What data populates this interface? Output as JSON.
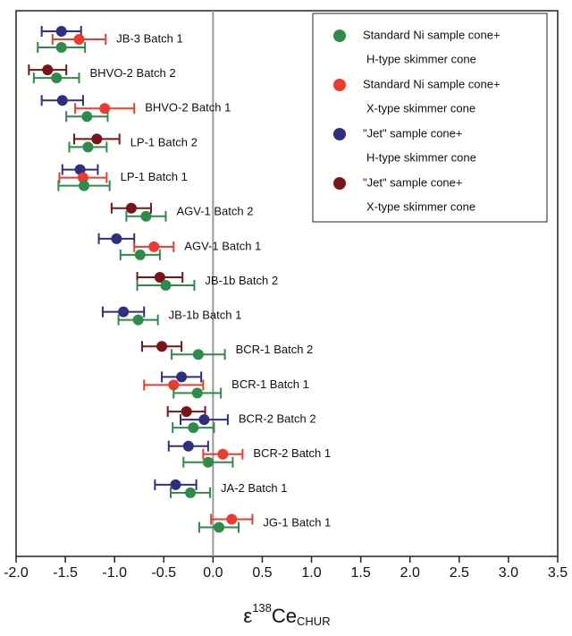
{
  "chart_data": {
    "type": "errorbar-dot",
    "categories": [
      "JB-3 Batch 1",
      "BHVO-2 Batch 2",
      "BHVO-2  Batch 1",
      "LP-1 Batch 2",
      "LP-1 Batch 1",
      "AGV-1  Batch 2",
      "AGV-1  Batch 1",
      "JB-1b Batch 2",
      "JB-1b  Batch 1",
      "BCR-1 Batch 2",
      "BCR-1 Batch 1",
      "BCR-2 Batch 2",
      "BCR-2 Batch 1",
      "JA-2 Batch 1",
      "JG-1 Batch 1"
    ],
    "series": [
      {
        "name": [
          "\"Jet\" sample cone+",
          "X-type skimmer cone"
        ],
        "color": "#7a1416",
        "values": [
          null,
          -1.68,
          null,
          -1.18,
          null,
          -0.83,
          null,
          -0.54,
          null,
          -0.52,
          null,
          -0.27,
          null,
          null,
          null
        ],
        "errors": [
          null,
          0.19,
          null,
          0.23,
          null,
          0.2,
          null,
          0.23,
          null,
          0.2,
          null,
          0.19,
          null,
          null,
          null
        ]
      },
      {
        "name": [
          "\"Jet\" sample cone+",
          "H-type skimmer cone"
        ],
        "color": "#2e2f80",
        "values": [
          -1.54,
          null,
          -1.53,
          null,
          -1.35,
          null,
          -0.98,
          null,
          -0.91,
          null,
          -0.32,
          -0.09,
          -0.25,
          -0.38,
          null
        ],
        "errors": [
          0.2,
          null,
          0.21,
          null,
          0.18,
          null,
          0.18,
          null,
          0.21,
          null,
          0.2,
          0.24,
          0.2,
          0.21,
          null
        ]
      },
      {
        "name": [
          "Standard Ni sample cone+",
          "X-type skimmer cone"
        ],
        "color": "#f03a2e",
        "values": [
          -1.36,
          null,
          -1.1,
          null,
          -1.32,
          null,
          -0.6,
          null,
          null,
          null,
          -0.4,
          null,
          0.1,
          null,
          0.19
        ],
        "errors": [
          0.27,
          null,
          0.3,
          null,
          0.24,
          null,
          0.2,
          null,
          null,
          null,
          0.3,
          null,
          0.2,
          null,
          0.21
        ]
      },
      {
        "name": [
          "Standard Ni sample cone+",
          "H-type skimmer cone"
        ],
        "color": "#2e8b4a",
        "values": [
          -1.54,
          -1.59,
          -1.28,
          -1.27,
          -1.31,
          -0.68,
          -0.74,
          -0.48,
          -0.76,
          -0.15,
          -0.16,
          -0.2,
          -0.05,
          -0.23,
          0.06
        ],
        "errors": [
          0.24,
          0.23,
          0.21,
          0.19,
          0.26,
          0.2,
          0.2,
          0.29,
          0.2,
          0.27,
          0.24,
          0.21,
          0.25,
          0.2,
          0.2
        ]
      }
    ],
    "legend_order": [
      3,
      2,
      1,
      0
    ],
    "xlabel": {
      "symbol": "ε",
      "sup": "138",
      "element": "Ce",
      "sub": "CHUR"
    },
    "xlim": [
      -2.0,
      3.5
    ],
    "xticks": [
      {
        "value": -2.0,
        "label": "-2.0"
      },
      {
        "value": -1.5,
        "label": "-1.5"
      },
      {
        "value": -1.0,
        "label": "-1.0"
      },
      {
        "value": -0.5,
        "label": "-0.5"
      },
      {
        "value": 0.0,
        "label": "0.0"
      },
      {
        "value": 0.5,
        "label": "0.5"
      },
      {
        "value": 1.0,
        "label": "1.0"
      },
      {
        "value": 1.5,
        "label": "1.5"
      },
      {
        "value": 2.0,
        "label": "2.0"
      },
      {
        "value": 2.5,
        "label": "2.5"
      },
      {
        "value": 3.0,
        "label": "3.0"
      },
      {
        "value": 3.5,
        "label": "3.5"
      }
    ],
    "reference_line": 0
  }
}
